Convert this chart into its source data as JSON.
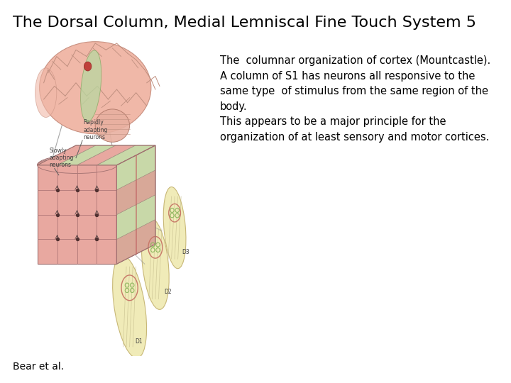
{
  "title": "The Dorsal Column, Medial Lemniscal Fine Touch System 5",
  "title_fontsize": 16,
  "title_color": "#000000",
  "body_text": "The  columnar organization of cortex (Mountcastle).\nA column of S1 has neurons all responsive to the\nsame type  of stimulus from the same region of the\nbody.\nThis appears to be a major principle for the\norganization of at least sensory and motor cortices.",
  "body_fontsize": 10.5,
  "body_color": "#000000",
  "footer_text": "Bear et al.",
  "footer_fontsize": 10,
  "background_color": "#ffffff",
  "brain_color": "#f0b8a8",
  "brain_edge": "#c89080",
  "pink_col": "#e8a8a0",
  "green_col": "#c8d8a8",
  "finger_col": "#f0ebb8",
  "finger_edge": "#c8b878",
  "nerve_edge": "#c87868",
  "nerve_inner": "#90b860",
  "label_color": "#404040",
  "line_color": "#909090"
}
